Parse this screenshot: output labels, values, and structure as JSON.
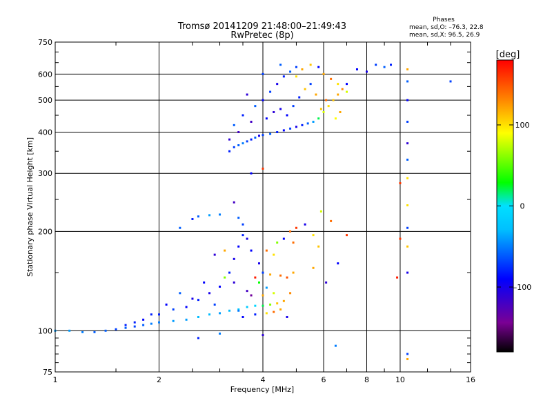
{
  "header": {
    "title_line1": "Tromsø 20141209 21:48:00–21:49:43",
    "title_line2": "RwPretec (8p)"
  },
  "phase_info": {
    "heading": "Phases",
    "o_line": "mean, sd,O:  –76.3, 22.8",
    "x_line": "mean, sd,X:  96.5, 26.9"
  },
  "chart_data": {
    "type": "scatter",
    "xlabel": "Frequency [MHz]",
    "ylabel": "Stationary phase Virtual Height [km]",
    "x_scale": "log",
    "y_scale": "log",
    "xlim": [
      1,
      16
    ],
    "ylim": [
      75,
      750
    ],
    "x_ticks": [
      1,
      2,
      4,
      6,
      8,
      10,
      16
    ],
    "x_tick_labels": [
      "1",
      "2",
      "4",
      "6",
      "8",
      "10",
      "16"
    ],
    "y_ticks": [
      75,
      100,
      200,
      300,
      400,
      500,
      600,
      750
    ],
    "y_tick_labels": [
      "75",
      "100",
      "200",
      "300",
      "400",
      "500",
      "600",
      "750"
    ],
    "grid": true,
    "colorbar": {
      "label": "[deg]",
      "range": [
        -180,
        180
      ],
      "ticks": [
        100,
        0,
        -100
      ],
      "tick_labels": [
        "100",
        "0",
        "–100"
      ]
    },
    "points": [
      [
        1.0,
        100,
        -40
      ],
      [
        1.1,
        100,
        -40
      ],
      [
        1.2,
        99,
        -50
      ],
      [
        1.3,
        99,
        -60
      ],
      [
        1.4,
        100,
        -60
      ],
      [
        1.5,
        101,
        -70
      ],
      [
        1.6,
        102,
        -60
      ],
      [
        1.7,
        103,
        -70
      ],
      [
        1.8,
        104,
        -60
      ],
      [
        1.9,
        105,
        -50
      ],
      [
        2.0,
        106,
        -50
      ],
      [
        2.2,
        107,
        -40
      ],
      [
        2.4,
        108,
        -40
      ],
      [
        2.6,
        110,
        -30
      ],
      [
        2.8,
        112,
        -30
      ],
      [
        3.0,
        113,
        -40
      ],
      [
        3.2,
        115,
        -30
      ],
      [
        3.4,
        116,
        -20
      ],
      [
        3.6,
        118,
        -20
      ],
      [
        3.8,
        119,
        -10
      ],
      [
        4.0,
        119,
        20
      ],
      [
        4.2,
        120,
        60
      ],
      [
        4.4,
        121,
        110
      ],
      [
        4.6,
        123,
        120
      ],
      [
        3.5,
        110,
        -90
      ],
      [
        3.8,
        112,
        -80
      ],
      [
        4.1,
        113,
        100
      ],
      [
        4.3,
        114,
        140
      ],
      [
        4.5,
        116,
        120
      ],
      [
        1.6,
        104,
        -80
      ],
      [
        1.8,
        108,
        -90
      ],
      [
        2.0,
        112,
        -80
      ],
      [
        2.2,
        116,
        -70
      ],
      [
        2.4,
        118,
        -90
      ],
      [
        2.6,
        124,
        -80
      ],
      [
        2.8,
        130,
        -100
      ],
      [
        3.0,
        136,
        -90
      ],
      [
        3.2,
        150,
        -80
      ],
      [
        3.3,
        165,
        -100
      ],
      [
        3.4,
        180,
        -90
      ],
      [
        3.5,
        195,
        -80
      ],
      [
        3.5,
        210,
        -70
      ],
      [
        3.4,
        220,
        -60
      ],
      [
        3.0,
        225,
        -50
      ],
      [
        2.8,
        224,
        -40
      ],
      [
        2.6,
        222,
        -60
      ],
      [
        2.5,
        218,
        -80
      ],
      [
        2.3,
        205,
        -60
      ],
      [
        3.6,
        190,
        -100
      ],
      [
        3.7,
        175,
        -90
      ],
      [
        3.9,
        160,
        -100
      ],
      [
        4.0,
        150,
        -70
      ],
      [
        4.2,
        148,
        120
      ],
      [
        4.5,
        147,
        140
      ],
      [
        4.7,
        145,
        150
      ],
      [
        4.9,
        150,
        120
      ],
      [
        4.4,
        185,
        60
      ],
      [
        4.6,
        190,
        -90
      ],
      [
        4.8,
        200,
        140
      ],
      [
        5.0,
        205,
        160
      ],
      [
        5.3,
        210,
        -100
      ],
      [
        5.6,
        195,
        100
      ],
      [
        5.8,
        180,
        110
      ],
      [
        4.1,
        175,
        140
      ],
      [
        4.3,
        170,
        100
      ],
      [
        3.9,
        140,
        30
      ],
      [
        4.1,
        135,
        -40
      ],
      [
        4.3,
        130,
        80
      ],
      [
        3.6,
        132,
        -120
      ],
      [
        3.7,
        128,
        -140
      ],
      [
        4.0,
        128,
        120
      ],
      [
        4.8,
        130,
        130
      ],
      [
        3.3,
        140,
        -110
      ],
      [
        3.1,
        145,
        60
      ],
      [
        2.9,
        120,
        -70
      ],
      [
        2.7,
        140,
        -90
      ],
      [
        2.3,
        130,
        -60
      ],
      [
        2.5,
        125,
        -100
      ],
      [
        2.1,
        120,
        -90
      ],
      [
        1.9,
        112,
        -80
      ],
      [
        1.7,
        106,
        -80
      ],
      [
        2.6,
        95,
        -80
      ],
      [
        3.0,
        98,
        -50
      ],
      [
        4.0,
        97,
        -110
      ],
      [
        4.7,
        110,
        -100
      ],
      [
        3.4,
        115,
        -50
      ],
      [
        3.8,
        145,
        170
      ],
      [
        4.9,
        185,
        140
      ],
      [
        3.2,
        350,
        -80
      ],
      [
        3.3,
        360,
        -70
      ],
      [
        3.4,
        365,
        -60
      ],
      [
        3.5,
        370,
        -50
      ],
      [
        3.6,
        375,
        -70
      ],
      [
        3.7,
        380,
        -80
      ],
      [
        3.8,
        385,
        -60
      ],
      [
        3.9,
        390,
        -100
      ],
      [
        4.0,
        392,
        -70
      ],
      [
        4.2,
        395,
        -60
      ],
      [
        4.4,
        400,
        -80
      ],
      [
        4.6,
        405,
        -90
      ],
      [
        4.8,
        410,
        -70
      ],
      [
        5.0,
        415,
        -100
      ],
      [
        5.2,
        420,
        -80
      ],
      [
        5.4,
        425,
        -60
      ],
      [
        5.6,
        430,
        -40
      ],
      [
        5.8,
        440,
        20
      ],
      [
        6.0,
        460,
        80
      ],
      [
        6.2,
        480,
        100
      ],
      [
        6.4,
        500,
        110
      ],
      [
        6.6,
        520,
        120
      ],
      [
        6.8,
        540,
        130
      ],
      [
        7.0,
        560,
        -90
      ],
      [
        3.3,
        420,
        -60
      ],
      [
        3.5,
        450,
        -80
      ],
      [
        3.8,
        480,
        -60
      ],
      [
        4.0,
        500,
        -90
      ],
      [
        4.2,
        530,
        -70
      ],
      [
        4.4,
        560,
        -100
      ],
      [
        4.6,
        590,
        -80
      ],
      [
        4.8,
        610,
        -60
      ],
      [
        5.0,
        630,
        -70
      ],
      [
        5.2,
        620,
        120
      ],
      [
        5.5,
        640,
        110
      ],
      [
        5.8,
        630,
        -90
      ],
      [
        6.0,
        600,
        120
      ],
      [
        6.3,
        580,
        140
      ],
      [
        6.6,
        560,
        100
      ],
      [
        7.0,
        530,
        80
      ],
      [
        4.5,
        470,
        -100
      ],
      [
        4.7,
        450,
        -90
      ],
      [
        4.9,
        480,
        -70
      ],
      [
        5.1,
        510,
        -80
      ],
      [
        5.3,
        540,
        110
      ],
      [
        5.5,
        560,
        -70
      ],
      [
        5.7,
        520,
        120
      ],
      [
        3.6,
        520,
        -110
      ],
      [
        3.7,
        430,
        -120
      ],
      [
        3.4,
        400,
        -120
      ],
      [
        3.2,
        380,
        -110
      ],
      [
        4.1,
        440,
        -90
      ],
      [
        4.3,
        460,
        -110
      ],
      [
        5.9,
        470,
        110
      ],
      [
        6.1,
        500,
        140
      ],
      [
        6.5,
        440,
        90
      ],
      [
        6.7,
        460,
        120
      ],
      [
        4.0,
        600,
        -70
      ],
      [
        4.5,
        640,
        -60
      ],
      [
        5.0,
        590,
        100
      ],
      [
        7.5,
        620,
        -90
      ],
      [
        8.0,
        610,
        -100
      ],
      [
        8.5,
        640,
        -70
      ],
      [
        9.0,
        630,
        -60
      ],
      [
        9.4,
        640,
        -80
      ],
      [
        4.0,
        310,
        160
      ],
      [
        10.5,
        620,
        120
      ],
      [
        10.5,
        570,
        -60
      ],
      [
        10.5,
        500,
        -90
      ],
      [
        10.5,
        430,
        -70
      ],
      [
        10.5,
        370,
        -110
      ],
      [
        10.5,
        330,
        -60
      ],
      [
        10.5,
        290,
        100
      ],
      [
        10.5,
        240,
        100
      ],
      [
        10.5,
        205,
        -70
      ],
      [
        10.5,
        180,
        110
      ],
      [
        10.5,
        150,
        -100
      ],
      [
        10.5,
        85,
        -70
      ],
      [
        10.5,
        82,
        120
      ],
      [
        10.0,
        280,
        160
      ],
      [
        10.0,
        190,
        160
      ],
      [
        9.8,
        145,
        170
      ],
      [
        14.0,
        570,
        -70
      ],
      [
        6.5,
        90,
        -50
      ],
      [
        7.0,
        195,
        160
      ],
      [
        6.3,
        215,
        140
      ],
      [
        6.6,
        160,
        -90
      ],
      [
        6.1,
        140,
        -110
      ],
      [
        5.6,
        155,
        120
      ],
      [
        5.9,
        230,
        80
      ],
      [
        3.7,
        300,
        -90
      ],
      [
        3.3,
        245,
        -120
      ],
      [
        3.1,
        175,
        120
      ],
      [
        2.9,
        170,
        -110
      ]
    ]
  }
}
